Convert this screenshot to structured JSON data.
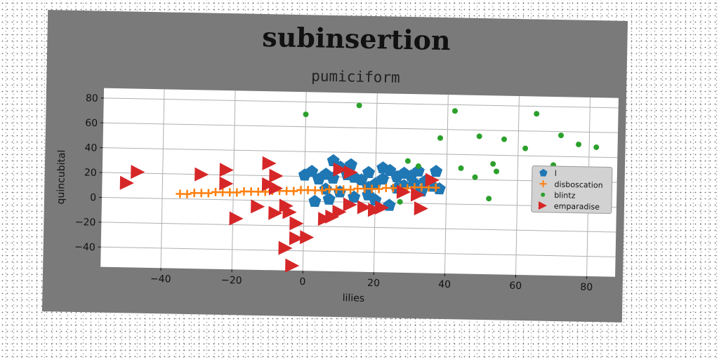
{
  "chart_data": {
    "type": "scatter",
    "title": "subinsertion",
    "subtitle": "pumiciform",
    "xlabel": "lilies",
    "ylabel": "quincubital",
    "xlim": [
      -57,
      88
    ],
    "ylim": [
      -56,
      88
    ],
    "xticks": [
      -40,
      -20,
      0,
      20,
      40,
      60,
      80
    ],
    "yticks": [
      -40,
      -20,
      0,
      20,
      40,
      60,
      80
    ],
    "grid": true,
    "legend_position": "center-right",
    "series": [
      {
        "name": "l",
        "marker": "pentagon",
        "color": "#1f77b4",
        "points": [
          [
            0,
            21
          ],
          [
            2,
            24
          ],
          [
            4,
            18
          ],
          [
            6,
            22
          ],
          [
            8,
            19
          ],
          [
            8,
            33
          ],
          [
            10,
            28
          ],
          [
            12,
            22
          ],
          [
            13,
            30
          ],
          [
            14,
            20
          ],
          [
            16,
            18
          ],
          [
            18,
            24
          ],
          [
            18,
            12
          ],
          [
            20,
            15
          ],
          [
            22,
            19
          ],
          [
            22,
            28
          ],
          [
            24,
            26
          ],
          [
            26,
            21
          ],
          [
            28,
            24
          ],
          [
            30,
            22
          ],
          [
            31,
            16
          ],
          [
            32,
            26
          ],
          [
            34,
            18
          ],
          [
            36,
            14
          ],
          [
            38,
            12
          ],
          [
            37,
            26
          ],
          [
            3,
            0
          ],
          [
            6,
            10
          ],
          [
            7,
            2
          ],
          [
            10,
            8
          ],
          [
            14,
            4
          ],
          [
            18,
            6
          ],
          [
            20,
            2
          ],
          [
            24,
            -2
          ],
          [
            26,
            12
          ],
          [
            28,
            14
          ],
          [
            33,
            10
          ]
        ]
      },
      {
        "name": "disboscation",
        "marker": "plus",
        "color": "#ff7f0e",
        "points": [
          [
            -35,
            4
          ],
          [
            -33,
            4
          ],
          [
            -31,
            5
          ],
          [
            -29,
            5
          ],
          [
            -27,
            5
          ],
          [
            -25,
            6
          ],
          [
            -23,
            6
          ],
          [
            -21,
            6
          ],
          [
            -19,
            6
          ],
          [
            -17,
            7
          ],
          [
            -15,
            7
          ],
          [
            -13,
            7
          ],
          [
            -11,
            7
          ],
          [
            -9,
            8
          ],
          [
            -7,
            8
          ],
          [
            -5,
            8
          ],
          [
            -3,
            8
          ],
          [
            -1,
            9
          ],
          [
            1,
            9
          ],
          [
            3,
            9
          ],
          [
            5,
            9
          ],
          [
            7,
            10
          ],
          [
            9,
            10
          ],
          [
            11,
            10
          ],
          [
            13,
            10
          ],
          [
            15,
            11
          ],
          [
            17,
            11
          ],
          [
            19,
            11
          ],
          [
            21,
            11
          ],
          [
            23,
            12
          ],
          [
            25,
            12
          ],
          [
            27,
            12
          ],
          [
            29,
            12
          ],
          [
            31,
            13
          ],
          [
            33,
            13
          ],
          [
            35,
            13
          ],
          [
            37,
            13
          ]
        ]
      },
      {
        "name": "blintz",
        "marker": "circle",
        "color": "#2ca02c",
        "points": [
          [
            0,
            70
          ],
          [
            15,
            78
          ],
          [
            42,
            75
          ],
          [
            65,
            74
          ],
          [
            38,
            53
          ],
          [
            49,
            55
          ],
          [
            56,
            53
          ],
          [
            62,
            46
          ],
          [
            72,
            57
          ],
          [
            77,
            50
          ],
          [
            82,
            48
          ],
          [
            29,
            34
          ],
          [
            44,
            29
          ],
          [
            53,
            33
          ],
          [
            54,
            27
          ],
          [
            70,
            33
          ],
          [
            32,
            30
          ],
          [
            48,
            22
          ],
          [
            52,
            5
          ],
          [
            27,
            1
          ]
        ]
      },
      {
        "name": "emparadise",
        "marker": "triangle-right",
        "color": "#d62728",
        "points": [
          [
            -50,
            12
          ],
          [
            -47,
            21
          ],
          [
            -29,
            20
          ],
          [
            -22,
            24
          ],
          [
            -22,
            13
          ],
          [
            -10,
            30
          ],
          [
            -8,
            20
          ],
          [
            -10,
            13
          ],
          [
            -8,
            10
          ],
          [
            -19,
            -15
          ],
          [
            -13,
            -5
          ],
          [
            -8,
            -10
          ],
          [
            -5,
            -4
          ],
          [
            -4,
            -9
          ],
          [
            -2,
            -18
          ],
          [
            -2,
            -30
          ],
          [
            1,
            -29
          ],
          [
            -5,
            -38
          ],
          [
            -3,
            -52
          ],
          [
            6,
            -14
          ],
          [
            8,
            -12
          ],
          [
            10,
            -8
          ],
          [
            13,
            -2
          ],
          [
            17,
            -4
          ],
          [
            20,
            -6
          ],
          [
            22,
            -4
          ],
          [
            10,
            26
          ],
          [
            13,
            24
          ],
          [
            28,
            9
          ],
          [
            32,
            7
          ],
          [
            33,
            -4
          ],
          [
            36,
            19
          ]
        ]
      }
    ]
  }
}
